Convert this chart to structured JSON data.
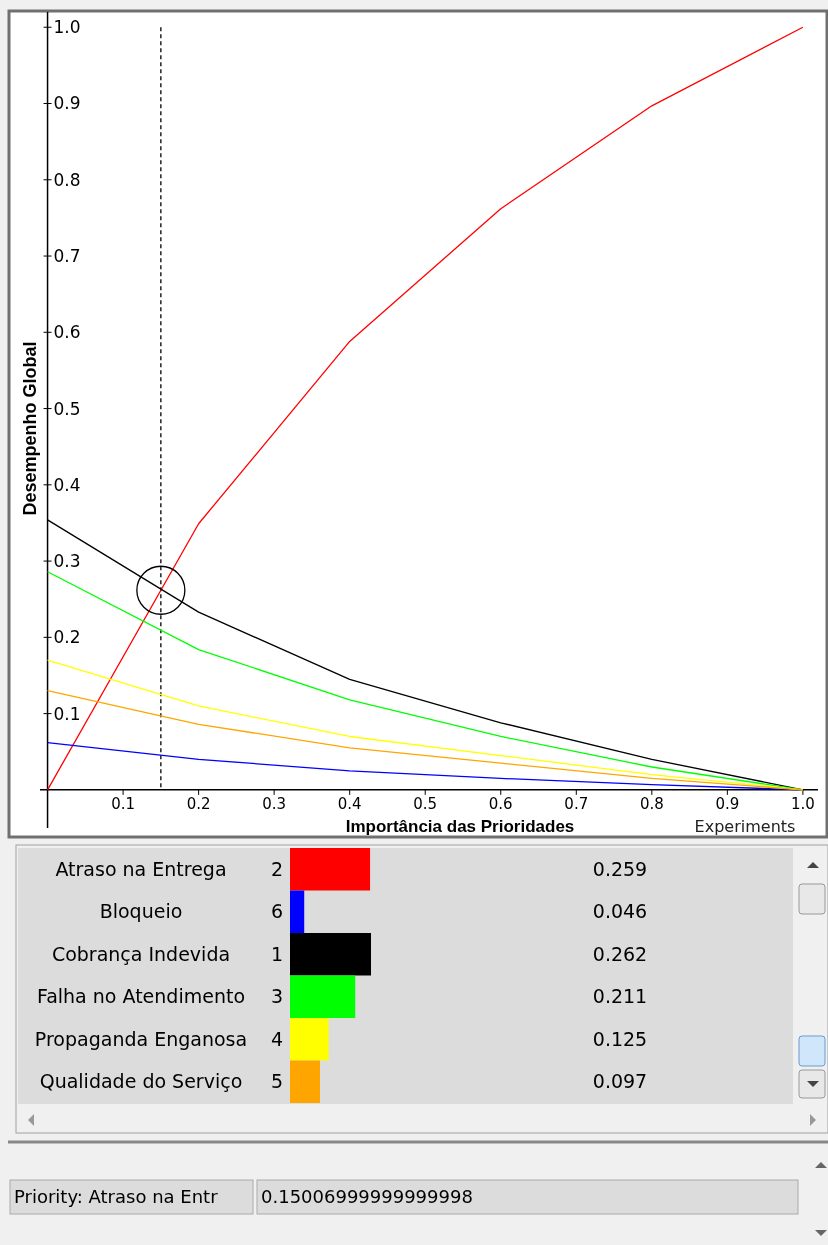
{
  "chart_data": [
    {
      "type": "line",
      "xlabel": "Importância das Prioridades",
      "ylabel": "Desempenho Global",
      "x": [
        0,
        0.2,
        0.4,
        0.6,
        0.8,
        1.0
      ],
      "series": [
        {
          "color": "#ff0000",
          "values": [
            0,
            0.349,
            0.588,
            0.762,
            0.897,
            1.0
          ]
        },
        {
          "color": "#0000ff",
          "values": [
            0.062,
            0.04,
            0.025,
            0.015,
            0.007,
            0
          ]
        },
        {
          "color": "#000000",
          "values": [
            0.354,
            0.233,
            0.145,
            0.088,
            0.04,
            0
          ]
        },
        {
          "color": "#00ff00",
          "values": [
            0.286,
            0.184,
            0.118,
            0.07,
            0.03,
            0
          ]
        },
        {
          "color": "#ffff00",
          "values": [
            0.17,
            0.11,
            0.07,
            0.045,
            0.02,
            0
          ]
        },
        {
          "color": "#ffa500",
          "values": [
            0.13,
            0.086,
            0.055,
            0.035,
            0.015,
            0
          ]
        }
      ],
      "xlim": [
        -0.01,
        1.02
      ],
      "ylim": [
        -0.05,
        1.02
      ],
      "xticks": [
        0.1,
        0.2,
        0.3,
        0.4,
        0.5,
        0.6,
        0.7,
        0.8,
        0.9,
        {
          "value": 1.0,
          "label": "1.0"
        }
      ],
      "yticks": [
        0.1,
        0.2,
        0.3,
        0.4,
        0.5,
        0.6,
        0.7,
        0.8,
        0.9,
        {
          "value": 1.0,
          "label": "1.0"
        }
      ],
      "ref_lines": [
        {
          "axis": "x",
          "value": 0.15,
          "color": "#000000",
          "line_style": "dashed"
        }
      ],
      "annotations": [
        "Experiments"
      ],
      "grid": false
    },
    {
      "type": "bar",
      "orientation": "horizontal",
      "categories": [
        "Atraso na Entrega",
        "Bloqueio",
        "Cobrança Indevida",
        "Falha no Atendimento",
        "Propaganda Enganosa",
        "Qualidade do Serviço"
      ],
      "values": [
        0.259,
        0.046,
        0.262,
        0.211,
        0.125,
        0.097
      ],
      "colors": [
        "#ff0000",
        "#0000ff",
        "#000000",
        "#00ff00",
        "#ffff00",
        "#ffa500"
      ],
      "data_labels": true,
      "annotations": [
        "2",
        "6",
        "1",
        "3",
        "4",
        "5",
        "Priority: Atraso na Entr",
        "0.15006999999999998"
      ]
    }
  ]
}
